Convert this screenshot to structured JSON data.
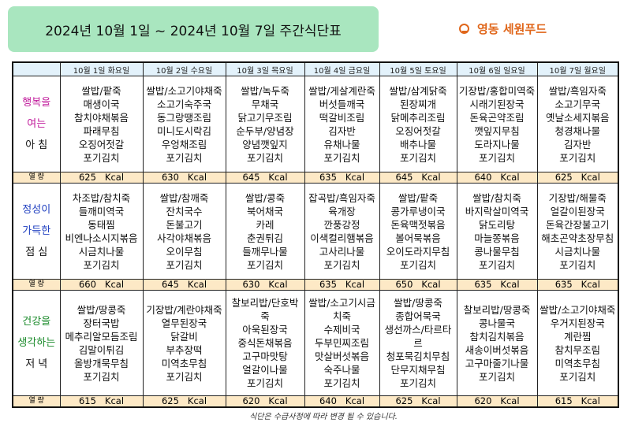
{
  "title": "2024년 10월 1일 ~ 2024년 10월 7일 주간식단표",
  "brand": {
    "name": "영동 세원푸드",
    "icon": "smile-icon",
    "color": "#e0661a"
  },
  "days": [
    "10월 1일 화요일",
    "10월 2일 수요일",
    "10월 3일 목요일",
    "10월 4일 금요일",
    "10월 5일 토요일",
    "10월 6일 일요일",
    "10월 7일 월요일"
  ],
  "kcal_label": "열 량",
  "kcal_unit": "Kcal",
  "meals": [
    {
      "label": [
        "행복을",
        "여는",
        "아  침"
      ],
      "color": "#c0189a",
      "menus": [
        [
          "쌀밥/팥죽",
          "매생이국",
          "참치야채볶음",
          "파래무침",
          "오징어젓갈",
          "포기김치"
        ],
        [
          "쌀밥/소고기야채죽",
          "소고기숙주국",
          "동그랑땡조림",
          "미니도시락김",
          "우엉채조림",
          "포기김치"
        ],
        [
          "쌀밥/녹두죽",
          "무채국",
          "닭고기무조림",
          "순두부/양념장",
          "양념깻잎지",
          "포기김치"
        ],
        [
          "쌀밥/게살계란죽",
          "버섯들깨국",
          "떡갈비조림",
          "김자반",
          "유채나물",
          "포기김치"
        ],
        [
          "쌀밥/삼계닭죽",
          "된장찌개",
          "닭메추리조림",
          "오징어젓갈",
          "배추나물",
          "포기김치"
        ],
        [
          "기장밥/홍합미역죽",
          "시래기된장국",
          "돈육곤약조림",
          "깻잎지무침",
          "도라지나물",
          "포기김치"
        ],
        [
          "쌀밥/흑임자죽",
          "소고기무국",
          "옛날소세지볶음",
          "청경채나물",
          "김자반",
          "포기김치"
        ]
      ],
      "kcal": [
        625,
        630,
        645,
        635,
        645,
        640,
        625
      ]
    },
    {
      "label": [
        "정성이",
        "가득한",
        "점  심"
      ],
      "color": "#2040c0",
      "menus": [
        [
          "차조밥/참치죽",
          "들깨미역국",
          "동태찜",
          "비엔나소시지볶음",
          "시금치나물",
          "포기김치"
        ],
        [
          "쌀밥/참깨죽",
          "잔치국수",
          "돈불고기",
          "사각야채볶음",
          "오이무침",
          "포기김치"
        ],
        [
          "쌀밥/콩죽",
          "북어채국",
          "카레",
          "춘권튀김",
          "들깨무나물",
          "포기김치"
        ],
        [
          "잡곡밥/흑임자죽",
          "육개장",
          "깐풍강정",
          "이색컬리햄볶음",
          "고사리나물",
          "포기김치"
        ],
        [
          "쌀밥/팥죽",
          "콩가루냉이국",
          "돈육맥젓볶음",
          "볼어묵볶음",
          "오이도라지무침",
          "포기김치"
        ],
        [
          "쌀밥/참치죽",
          "바지락살미역국",
          "닭도리탕",
          "마늘쫑볶음",
          "콩나물무침",
          "포기김치"
        ],
        [
          "기장밥/해물죽",
          "얼갈이된장국",
          "돈육간장불고기",
          "해초곤약초장무침",
          "시금치나물",
          "포기김치"
        ]
      ],
      "kcal": [
        660,
        645,
        630,
        635,
        650,
        635,
        635
      ]
    },
    {
      "label": [
        "건강을",
        "생각하는",
        "저  녁"
      ],
      "color": "#1a8a2a",
      "menus": [
        [
          "쌀밥/땅콩죽",
          "장터국밥",
          "메추리알모듬조림",
          "김말이튀김",
          "올방개묵무침",
          "포기김치"
        ],
        [
          "기장밥/계란야채죽",
          "열무된장국",
          "닭갈비",
          "부추장떡",
          "미역초무침",
          "포기김치"
        ],
        [
          "찰보리밥/단호박죽",
          "아욱된장국",
          "중식돈채볶음",
          "고구마맛탕",
          "얼갈이나물",
          "포기김치"
        ],
        [
          "쌀밥/소고기시금치죽",
          "수제비국",
          "두부민찌조림",
          "맛살버섯볶음",
          "숙주나물",
          "포기김치"
        ],
        [
          "쌀밥/땅콩죽",
          "종합어묵국",
          "생선까스/타르타르",
          "청포묵김치무침",
          "단무지채무침",
          "포기김치"
        ],
        [
          "찰보리밥/땅콩죽",
          "콩나물국",
          "참치김치볶음",
          "새송이버섯볶음",
          "고구마줄기나물",
          "포기김치"
        ],
        [
          "쌀밥/소고기야채죽",
          "우거지된장국",
          "계란찜",
          "참치무조림",
          "미역초무침",
          "포기김치"
        ]
      ],
      "kcal": [
        615,
        625,
        620,
        640,
        625,
        620,
        615
      ]
    }
  ],
  "footer": "식단은 수급사정에 따라 변경 될 수 있습니다."
}
